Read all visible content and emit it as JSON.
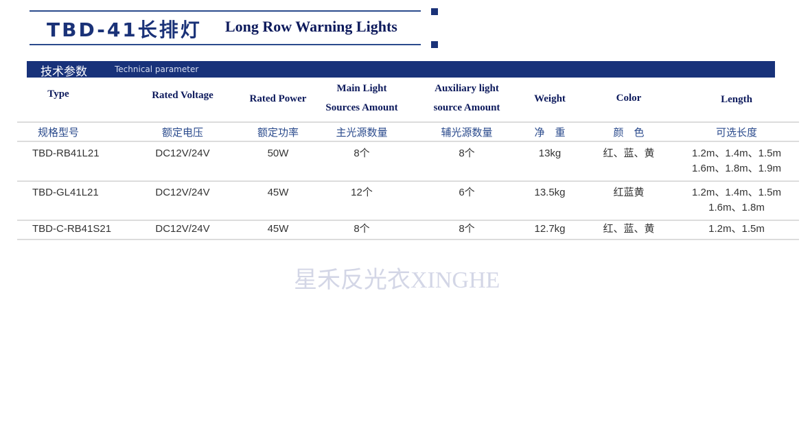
{
  "header": {
    "title_cn": "TBD-41长排灯",
    "title_en": "Long Row Warning Lights"
  },
  "section": {
    "title_cn": "技术参数",
    "title_en": "Technical parameter"
  },
  "colors": {
    "brand": "#18327a",
    "header_text": "#0d1a5c"
  },
  "table": {
    "headers_en": [
      [
        "Type"
      ],
      [
        "Rated Voltage"
      ],
      [
        "Rated Power"
      ],
      [
        "Main Light",
        "Sources Amount"
      ],
      [
        "Auxiliary light",
        "source Amount"
      ],
      [
        "Weight"
      ],
      [
        "Color"
      ],
      [
        "Length"
      ]
    ],
    "headers_cn": [
      "规格型号",
      "额定电压",
      "额定功率",
      "主光源数量",
      "辅光源数量",
      "净　重",
      "颜　色",
      "可选长度"
    ],
    "rows": [
      [
        "TBD-RB41L21",
        "DC12V/24V",
        "50W",
        "8个",
        "8个",
        "13kg",
        "红、蓝、黄",
        [
          "1.2m、1.4m、1.5m",
          "1.6m、1.8m、1.9m"
        ]
      ],
      [
        "TBD-GL41L21",
        "DC12V/24V",
        "45W",
        "12个",
        "6个",
        "13.5kg",
        "红蓝黄",
        [
          "1.2m、1.4m、1.5m",
          "1.6m、1.8m"
        ]
      ],
      [
        "TBD-C-RB41S21",
        "DC12V/24V",
        "45W",
        "8个",
        "8个",
        "12.7kg",
        "红、蓝、黄",
        [
          "1.2m、1.5m"
        ]
      ]
    ]
  },
  "watermark": "星禾反光衣XINGHE"
}
